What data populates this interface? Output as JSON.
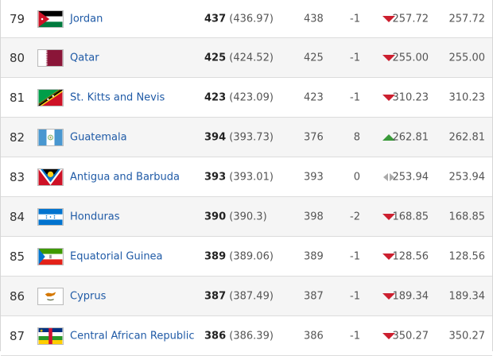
{
  "rows": [
    {
      "rank": "79",
      "team": "Jordan",
      "flag": "jordan-flag-icon",
      "pts": "437",
      "pts_exact": "(436.97)",
      "prev": "438",
      "change": "-1",
      "trend": "down",
      "avg1": "257.72",
      "avg2": "257.72"
    },
    {
      "rank": "80",
      "team": "Qatar",
      "flag": "qatar-flag-icon",
      "pts": "425",
      "pts_exact": "(424.52)",
      "prev": "425",
      "change": "-1",
      "trend": "down",
      "avg1": "255.00",
      "avg2": "255.00"
    },
    {
      "rank": "81",
      "team": "St. Kitts and Nevis",
      "flag": "st-kitts-and-nevis-flag-icon",
      "pts": "423",
      "pts_exact": "(423.09)",
      "prev": "423",
      "change": "-1",
      "trend": "down",
      "avg1": "310.23",
      "avg2": "310.23"
    },
    {
      "rank": "82",
      "team": "Guatemala",
      "flag": "guatemala-flag-icon",
      "pts": "394",
      "pts_exact": "(393.73)",
      "prev": "376",
      "change": "8",
      "trend": "up",
      "avg1": "262.81",
      "avg2": "262.81"
    },
    {
      "rank": "83",
      "team": "Antigua and Barbuda",
      "flag": "antigua-and-barbuda-flag-icon",
      "pts": "393",
      "pts_exact": "(393.01)",
      "prev": "393",
      "change": "0",
      "trend": "same",
      "avg1": "253.94",
      "avg2": "253.94"
    },
    {
      "rank": "84",
      "team": "Honduras",
      "flag": "honduras-flag-icon",
      "pts": "390",
      "pts_exact": "(390.3)",
      "prev": "398",
      "change": "-2",
      "trend": "down",
      "avg1": "168.85",
      "avg2": "168.85"
    },
    {
      "rank": "85",
      "team": "Equatorial Guinea",
      "flag": "equatorial-guinea-flag-icon",
      "pts": "389",
      "pts_exact": "(389.06)",
      "prev": "389",
      "change": "-1",
      "trend": "down",
      "avg1": "128.56",
      "avg2": "128.56"
    },
    {
      "rank": "86",
      "team": "Cyprus",
      "flag": "cyprus-flag-icon",
      "pts": "387",
      "pts_exact": "(387.49)",
      "prev": "387",
      "change": "-1",
      "trend": "down",
      "avg1": "189.34",
      "avg2": "189.34"
    },
    {
      "rank": "87",
      "team": "Central African Republic",
      "flag": "central-african-republic-flag-icon",
      "pts": "386",
      "pts_exact": "(386.39)",
      "prev": "386",
      "change": "-1",
      "trend": "down",
      "avg1": "350.27",
      "avg2": "350.27"
    }
  ],
  "colors": {
    "link": "#1f5aa6",
    "down": "#cc1f2f",
    "up": "#3a9a3a",
    "same": "#aaaaaa"
  }
}
